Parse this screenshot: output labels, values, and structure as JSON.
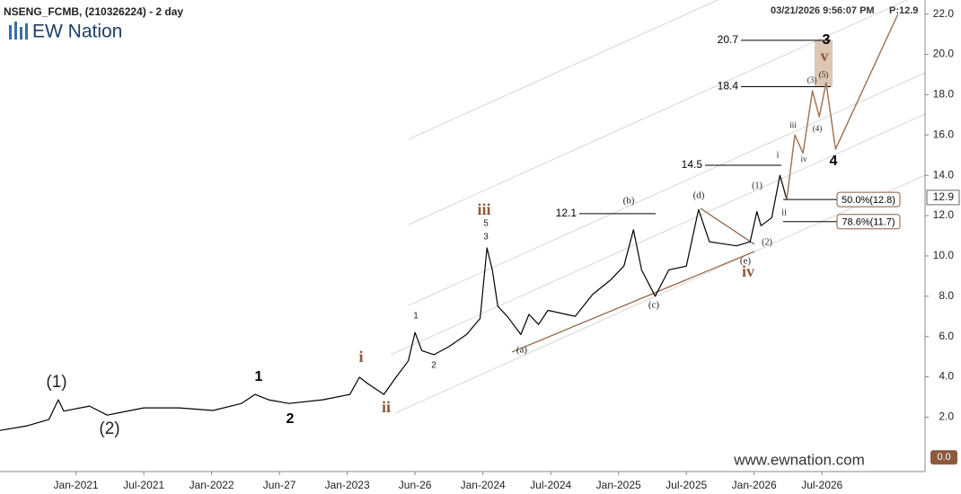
{
  "title": "NSENG_FCMB, (210326224) - 2 day",
  "timestamp": "03/21/2026 9:56:07 PM",
  "last_price_label": "P:12.9",
  "logo": "EW Nation",
  "watermark": "www.ewnation.com",
  "chart_data": {
    "type": "line",
    "series": [
      {
        "color": "#000000",
        "x": [
          2020.44,
          2020.64,
          2020.8,
          2020.87,
          2020.91,
          2021.1,
          2021.23,
          2021.5,
          2021.76,
          2022.01,
          2022.22,
          2022.32,
          2022.42,
          2022.57,
          2022.82,
          2023.02,
          2023.09,
          2023.15,
          2023.27,
          2023.35,
          2023.45,
          2023.5,
          2023.55,
          2023.64,
          2023.75,
          2023.88,
          2023.98,
          2024.03,
          2024.07,
          2024.11,
          2024.18,
          2024.28,
          2024.34,
          2024.41,
          2024.48,
          2024.68,
          2024.81,
          2024.94,
          2025.04,
          2025.11,
          2025.17,
          2025.27,
          2025.37,
          2025.5,
          2025.59,
          2025.67,
          2025.87,
          2025.97,
          2026.02,
          2026.05,
          2026.13,
          2026.19,
          2026.24
        ],
        "values": [
          1.34,
          1.57,
          1.88,
          2.86,
          2.3,
          2.55,
          2.1,
          2.46,
          2.46,
          2.33,
          2.68,
          3.13,
          2.86,
          2.68,
          2.86,
          3.13,
          3.98,
          3.67,
          3.13,
          3.89,
          4.79,
          6.2,
          5.3,
          5.1,
          5.5,
          6.1,
          6.9,
          10.4,
          9.3,
          7.5,
          7.0,
          6.1,
          7.1,
          6.6,
          7.3,
          7.0,
          8.1,
          8.8,
          9.5,
          11.3,
          9.3,
          8.0,
          9.3,
          9.5,
          12.3,
          10.7,
          10.5,
          10.7,
          12.2,
          11.5,
          11.9,
          14.0,
          12.8
        ]
      },
      {
        "color": "#a0785a",
        "x": [
          2026.24,
          2026.3,
          2026.36,
          2026.43,
          2026.48,
          2026.53,
          2026.6,
          2027.06
        ],
        "values": [
          12.8,
          16.0,
          15.1,
          18.2,
          16.9,
          18.6,
          15.3,
          22.0
        ]
      }
    ],
    "xlim": [
      2020.44,
      2027.26
    ],
    "xticks": [
      {
        "value": 2021.0,
        "label": "Jan-2021"
      },
      {
        "value": 2021.5,
        "label": "Jul-2021"
      },
      {
        "value": 2022.0,
        "label": "Jan-2022"
      },
      {
        "value": 2022.5,
        "label": "Jun-27"
      },
      {
        "value": 2023.0,
        "label": "Jan-2023"
      },
      {
        "value": 2023.5,
        "label": "Jun-26"
      },
      {
        "value": 2024.0,
        "label": "Jan-2024"
      },
      {
        "value": 2024.5,
        "label": "Jul-2024"
      },
      {
        "value": 2025.0,
        "label": "Jan-2025"
      },
      {
        "value": 2025.5,
        "label": "Jul-2025"
      },
      {
        "value": 2026.0,
        "label": "Jan-2026"
      },
      {
        "value": 2026.5,
        "label": "Jul-2026"
      }
    ],
    "ylim": [
      -0.7,
      22.7
    ],
    "yticks": [
      {
        "value": 2,
        "label": "2.0"
      },
      {
        "value": 4,
        "label": "4.0"
      },
      {
        "value": 6,
        "label": "6.0"
      },
      {
        "value": 8,
        "label": "8.0"
      },
      {
        "value": 10,
        "label": "10.0"
      },
      {
        "value": 12,
        "label": "12.0"
      },
      {
        "value": 14,
        "label": "14.0"
      },
      {
        "value": 16,
        "label": "16.0"
      },
      {
        "value": 18,
        "label": "18.0"
      },
      {
        "value": 20,
        "label": "20.0"
      },
      {
        "value": 22,
        "label": "22.0"
      }
    ],
    "levels": [
      20.7,
      18.4,
      14.5,
      12.1
    ],
    "fib": [
      {
        "value": 12.8,
        "label": "50.0%(12.8)"
      },
      {
        "value": 11.7,
        "label": "78.6%(11.7)"
      }
    ],
    "last_price": 12.9,
    "zero_tag": {
      "value": 0,
      "label": "0.0"
    },
    "wave_labels": [
      "(1)",
      "(2)",
      "1",
      "2",
      "i",
      "ii",
      "iii",
      "iv",
      "v",
      "3",
      "4",
      "5",
      "3",
      "1",
      "2",
      "(a)",
      "(b)",
      "(c)",
      "(d)",
      "(e)",
      "(1)",
      "(2)",
      "i",
      "ii",
      "iii",
      "iv",
      "(3)",
      "(4)",
      "(5)"
    ]
  }
}
